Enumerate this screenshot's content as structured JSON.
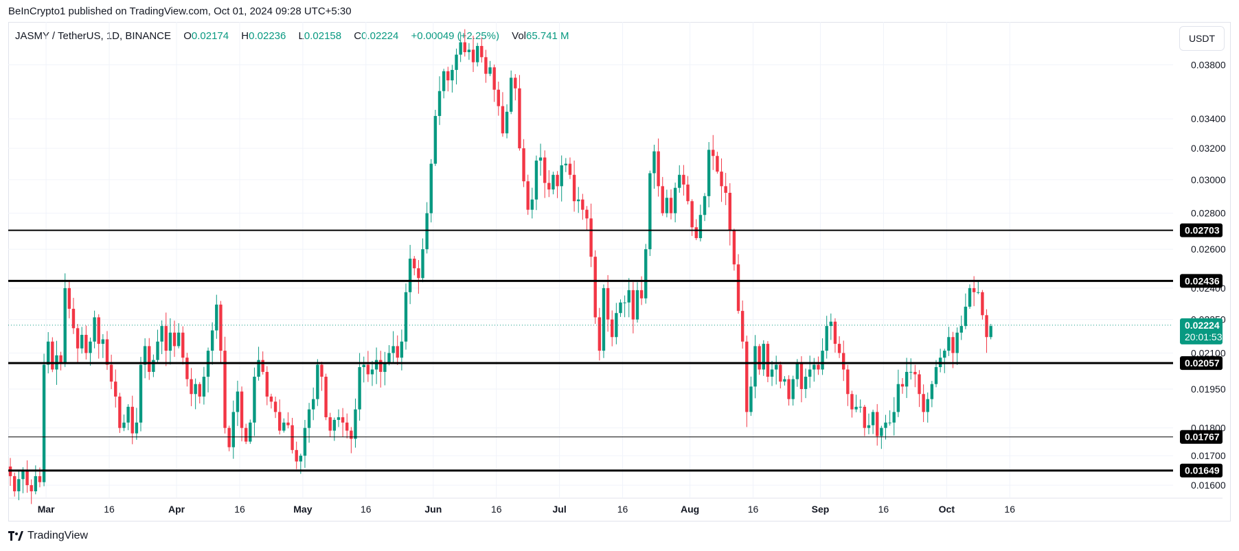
{
  "publisher": "BeInCrypto1 published on TradingView.com, Oct 01, 2024 09:28 UTC+5:30",
  "legend": {
    "symbol": "JASMY / TetherUS, 1D, BINANCE",
    "o_label": "O",
    "o_value": "0.02174",
    "h_label": "H",
    "h_value": "0.02236",
    "l_label": "L",
    "l_value": "0.02158",
    "c_label": "C",
    "c_value": "0.02224",
    "change": "+0.00049 (+2.25%)",
    "vol_label": "Vol",
    "vol_value": "65.741 M"
  },
  "currency_button": "USDT",
  "footer": {
    "brand": "TradingView",
    "logo_icon": "tradingview-logo-icon"
  },
  "colors": {
    "up": "#089981",
    "down": "#f23645",
    "grid": "#f0f3fa",
    "line": "#000000",
    "axis_text": "#131722"
  },
  "chart_data": {
    "type": "candlestick",
    "title": "JASMY / TetherUS, 1D, BINANCE",
    "y_axis": {
      "scale": "log",
      "range": [
        0.0156,
        0.0415
      ],
      "tick_labels": [
        "0.03800",
        "0.03400",
        "0.03200",
        "0.03000",
        "0.02800",
        "0.02600",
        "0.02400",
        "0.02250",
        "0.02100",
        "0.01950",
        "0.01800",
        "0.01700",
        "0.01600"
      ]
    },
    "x_axis": {
      "start": "2024-02-21",
      "end": "2024-10-16",
      "tick_labels": [
        {
          "label": "Mar",
          "date": "2024-03-01"
        },
        {
          "label": "16",
          "date": "2024-03-16"
        },
        {
          "label": "Apr",
          "date": "2024-04-01"
        },
        {
          "label": "16",
          "date": "2024-04-16"
        },
        {
          "label": "May",
          "date": "2024-05-01"
        },
        {
          "label": "16",
          "date": "2024-05-16"
        },
        {
          "label": "Jun",
          "date": "2024-06-01"
        },
        {
          "label": "16",
          "date": "2024-06-16"
        },
        {
          "label": "Jul",
          "date": "2024-07-01"
        },
        {
          "label": "16",
          "date": "2024-07-16"
        },
        {
          "label": "Aug",
          "date": "2024-08-01"
        },
        {
          "label": "16",
          "date": "2024-08-16"
        },
        {
          "label": "Sep",
          "date": "2024-09-01"
        },
        {
          "label": "16",
          "date": "2024-09-16"
        },
        {
          "label": "Oct",
          "date": "2024-10-01"
        },
        {
          "label": "16",
          "date": "2024-10-16"
        }
      ]
    },
    "grid": true,
    "horizontal_lines": [
      {
        "price": 0.02703,
        "label": "0.02703",
        "width": 2
      },
      {
        "price": 0.02436,
        "label": "0.02436",
        "width": 3
      },
      {
        "price": 0.02057,
        "label": "0.02057",
        "width": 3
      },
      {
        "price": 0.01767,
        "label": "0.01767",
        "width": 1
      },
      {
        "price": 0.01649,
        "label": "0.01649",
        "width": 3
      }
    ],
    "last_price": {
      "price": 0.02224,
      "label": "0.02224",
      "countdown": "20:01:53"
    },
    "candles": {
      "start_date": "2024-02-21",
      "closes": [
        0.0163,
        0.0158,
        0.0162,
        0.0165,
        0.016,
        0.0158,
        0.0163,
        0.0161,
        0.0205,
        0.0215,
        0.0203,
        0.0209,
        0.0206,
        0.024,
        0.023,
        0.0221,
        0.0212,
        0.0218,
        0.021,
        0.0215,
        0.0226,
        0.0214,
        0.0216,
        0.0205,
        0.0198,
        0.0192,
        0.018,
        0.0182,
        0.0188,
        0.0178,
        0.0182,
        0.0205,
        0.0213,
        0.0202,
        0.0207,
        0.0215,
        0.0222,
        0.0211,
        0.0219,
        0.0213,
        0.0219,
        0.0208,
        0.0199,
        0.0193,
        0.0197,
        0.0192,
        0.02,
        0.0211,
        0.022,
        0.0232,
        0.0211,
        0.018,
        0.0173,
        0.0186,
        0.0194,
        0.018,
        0.0175,
        0.0182,
        0.02,
        0.0207,
        0.0202,
        0.0192,
        0.019,
        0.0186,
        0.0179,
        0.0182,
        0.0181,
        0.0172,
        0.0168,
        0.017,
        0.018,
        0.0187,
        0.0191,
        0.0205,
        0.02,
        0.0184,
        0.0179,
        0.0183,
        0.0184,
        0.0182,
        0.0179,
        0.0176,
        0.0187,
        0.0204,
        0.0205,
        0.0201,
        0.0203,
        0.0207,
        0.0202,
        0.0206,
        0.021,
        0.0213,
        0.0208,
        0.0215,
        0.0238,
        0.0255,
        0.025,
        0.0245,
        0.026,
        0.028,
        0.031,
        0.0342,
        0.036,
        0.0375,
        0.0368,
        0.0376,
        0.0388,
        0.0398,
        0.039,
        0.0392,
        0.0382,
        0.0395,
        0.0386,
        0.0373,
        0.0378,
        0.0361,
        0.0349,
        0.033,
        0.0345,
        0.037,
        0.0362,
        0.032,
        0.0299,
        0.0282,
        0.0288,
        0.0312,
        0.0314,
        0.0298,
        0.0294,
        0.0303,
        0.0296,
        0.0309,
        0.031,
        0.0303,
        0.0287,
        0.0288,
        0.0282,
        0.0277,
        0.0256,
        0.0226,
        0.0211,
        0.024,
        0.0225,
        0.0217,
        0.0228,
        0.0233,
        0.0233,
        0.0239,
        0.0225,
        0.0239,
        0.0235,
        0.026,
        0.0304,
        0.0318,
        0.0296,
        0.028,
        0.0289,
        0.028,
        0.0295,
        0.0303,
        0.0297,
        0.0287,
        0.0272,
        0.0266,
        0.0279,
        0.029,
        0.0319,
        0.0315,
        0.0305,
        0.0296,
        0.0292,
        0.027,
        0.0252,
        0.0229,
        0.0215,
        0.0186,
        0.0196,
        0.0213,
        0.0203,
        0.0214,
        0.02,
        0.0203,
        0.0205,
        0.0198,
        0.0199,
        0.0191,
        0.0199,
        0.0206,
        0.0195,
        0.02,
        0.0203,
        0.0205,
        0.0203,
        0.0211,
        0.0222,
        0.0224,
        0.0214,
        0.021,
        0.0203,
        0.0193,
        0.0187,
        0.0188,
        0.0188,
        0.018,
        0.0181,
        0.0186,
        0.0177,
        0.018,
        0.0182,
        0.0182,
        0.0186,
        0.0197,
        0.0196,
        0.0202,
        0.0202,
        0.0201,
        0.0193,
        0.0186,
        0.0191,
        0.0197,
        0.0204,
        0.0208,
        0.0211,
        0.0217,
        0.021,
        0.0219,
        0.0222,
        0.0231,
        0.024,
        0.0238,
        0.0238,
        0.0227,
        0.0217,
        0.0222
      ]
    }
  }
}
